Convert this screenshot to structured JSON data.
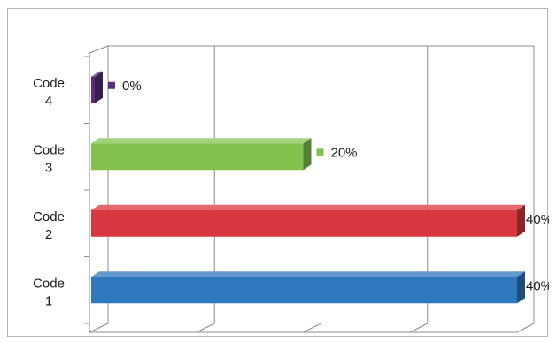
{
  "chart_data": {
    "type": "bar",
    "orientation": "horizontal",
    "style": "3d-clustered",
    "categories": [
      "Code 1",
      "Code 2",
      "Code 3",
      "Code 4"
    ],
    "category_lines": [
      [
        "Code",
        "1"
      ],
      [
        "Code",
        "2"
      ],
      [
        "Code",
        "3"
      ],
      [
        "Code",
        "4"
      ]
    ],
    "values": [
      40,
      40,
      20,
      0
    ],
    "data_labels": [
      "40%",
      "40%",
      "20%",
      "0%"
    ],
    "colors": [
      "#2e78bd",
      "#d9373f",
      "#82c350",
      "#5a2e7c"
    ],
    "xlim": [
      0,
      40
    ],
    "x_gridlines": [
      0,
      10,
      20,
      30,
      40
    ],
    "grid": true,
    "legend": "none",
    "title": "",
    "xlabel": "",
    "ylabel": ""
  }
}
